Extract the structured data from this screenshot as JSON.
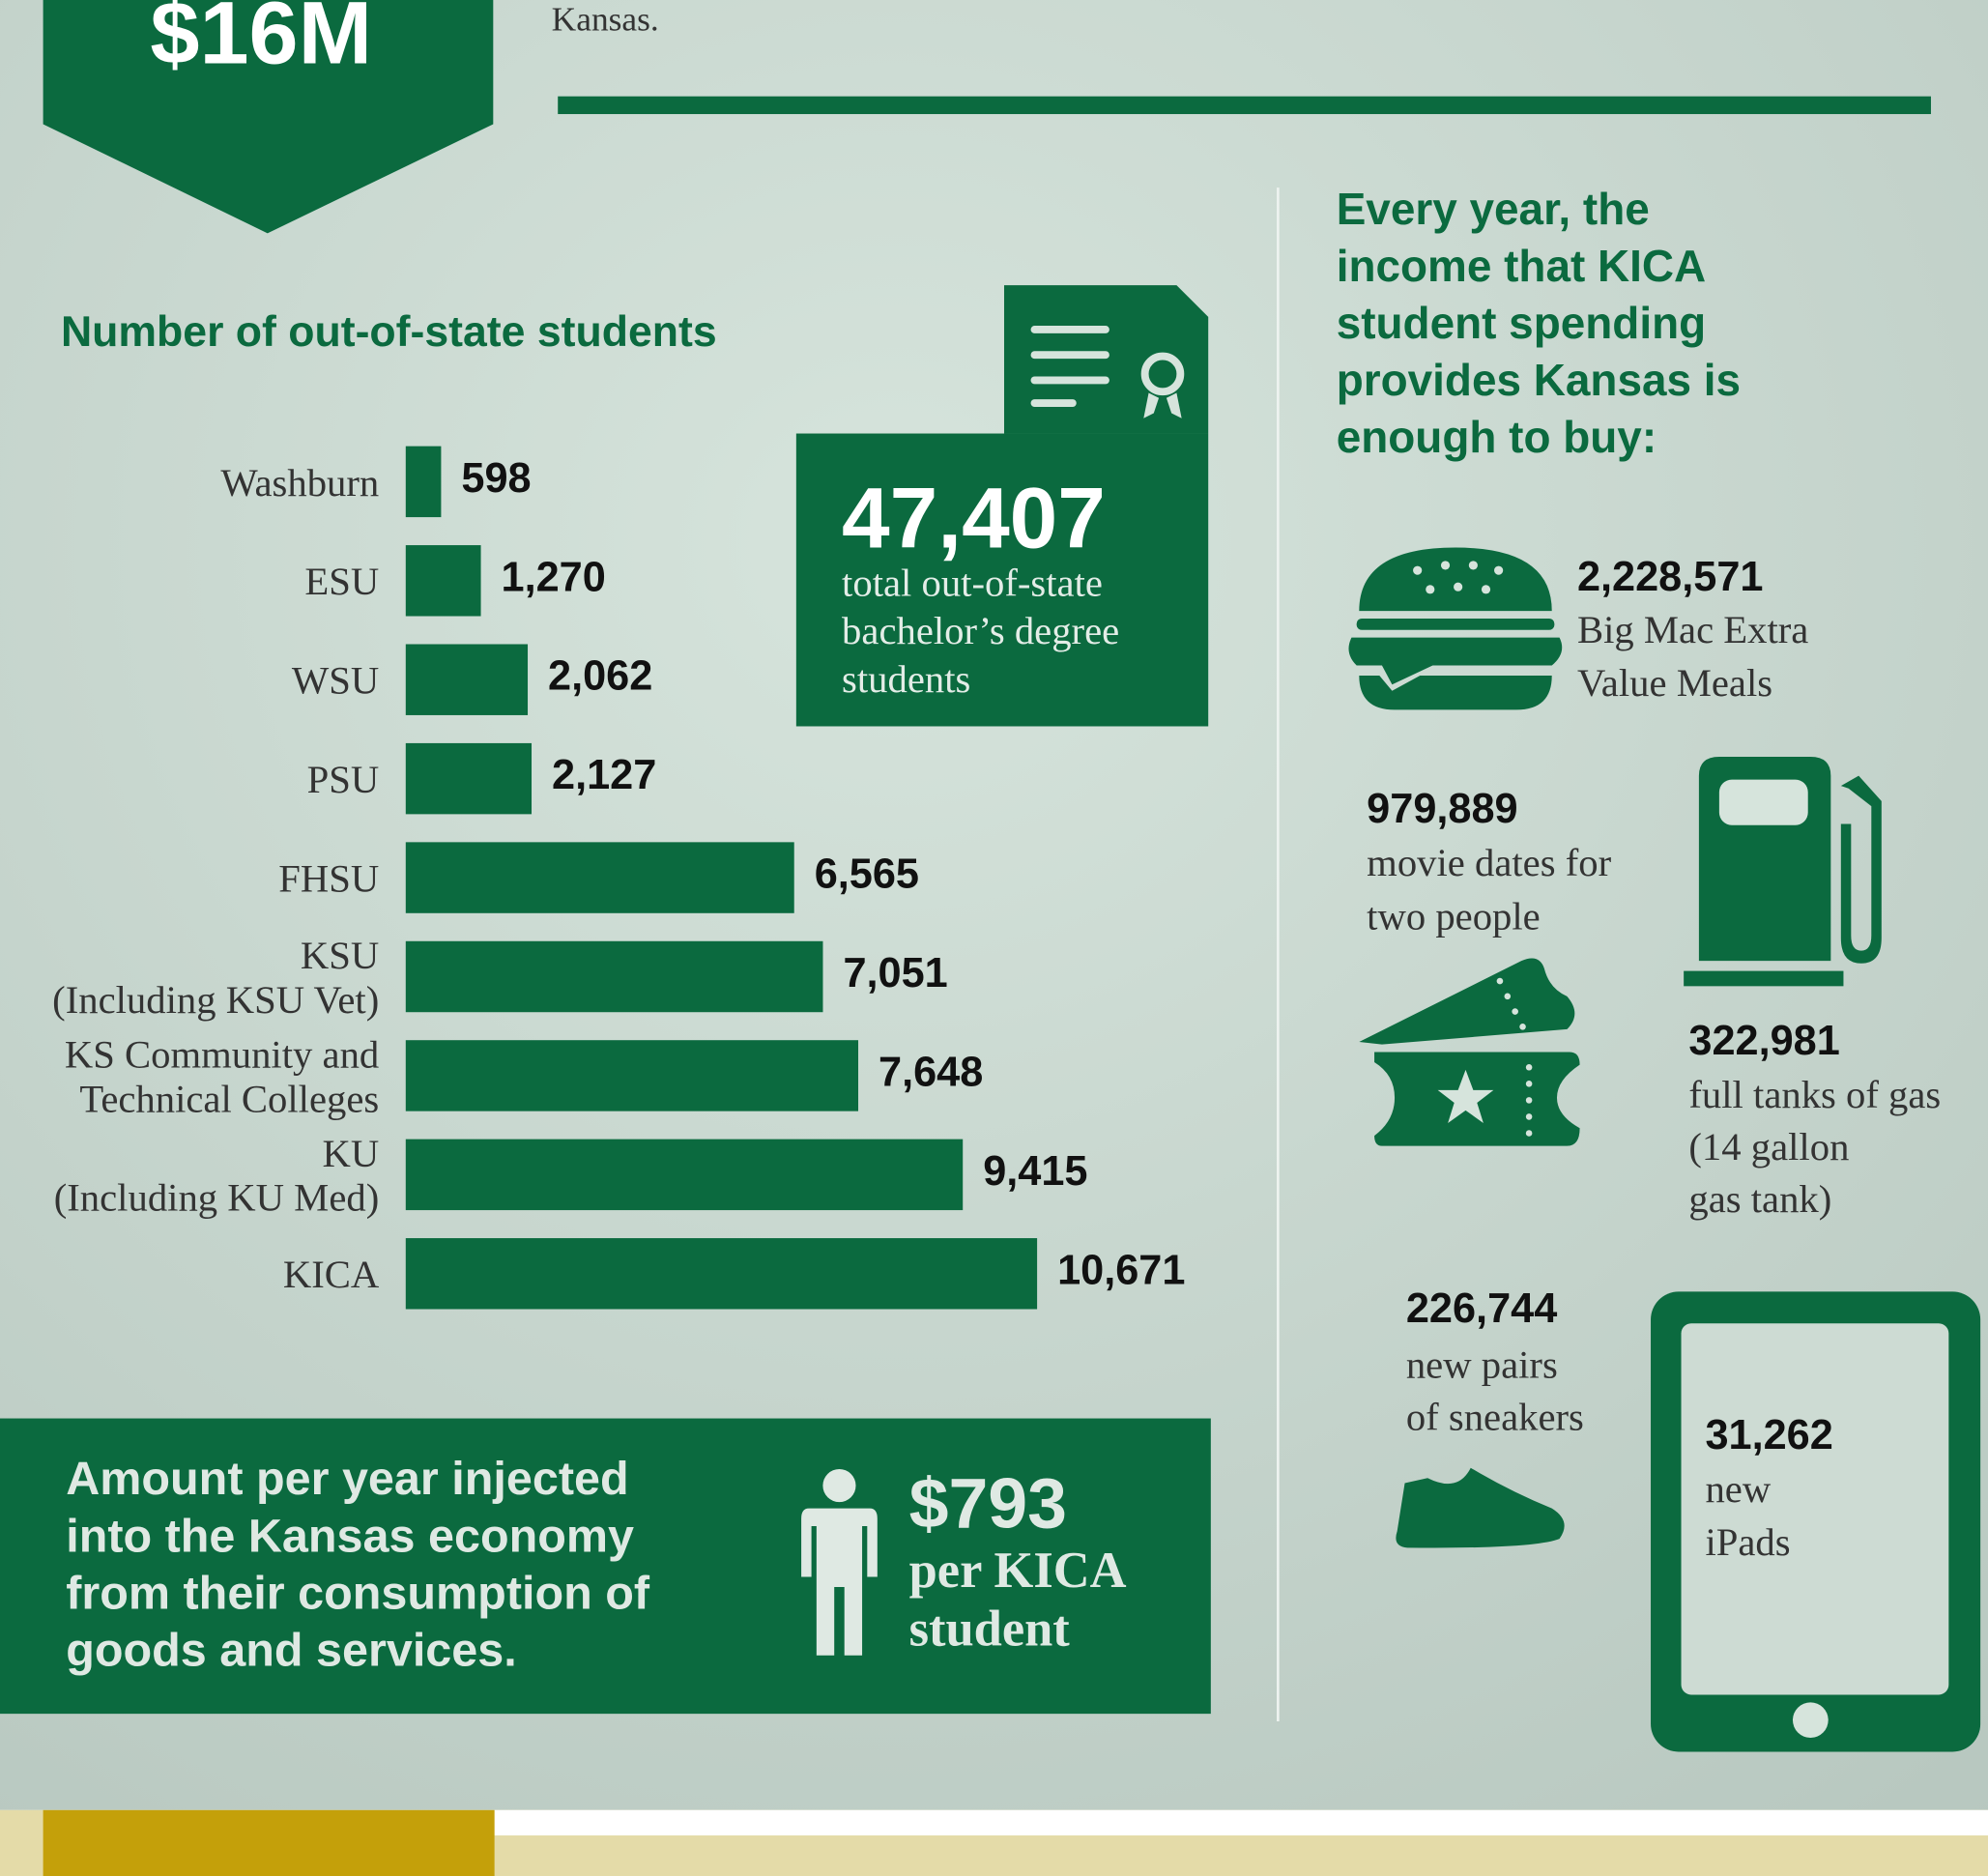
{
  "header": {
    "amount": "$16M",
    "text": "Kansas."
  },
  "chart_data": {
    "type": "bar",
    "orientation": "horizontal",
    "title": "Number of out-of-state students",
    "categories": [
      "Washburn",
      "ESU",
      "WSU",
      "PSU",
      "FHSU",
      "KSU\n(Including KSU Vet)",
      "KS Community and\nTechnical Colleges",
      "KU\n(Including KU Med)",
      "KICA"
    ],
    "values": [
      598,
      1270,
      2062,
      2127,
      6565,
      7051,
      7648,
      9415,
      10671
    ],
    "value_labels": [
      "598",
      "1,270",
      "2,062",
      "2,127",
      "6,565",
      "7,051",
      "7,648",
      "9,415",
      "10,671"
    ],
    "color": "#0b6a3f"
  },
  "total": {
    "value": "47,407",
    "label": "total out-of-state\nbachelor’s degree\nstudents"
  },
  "spending": {
    "title": "Every year, the\nincome that KICA\nstudent spending\nprovides Kansas is\nenough to buy:",
    "items": [
      {
        "value": "2,228,571",
        "label": "Big Mac Extra\nValue Meals"
      },
      {
        "value": "979,889",
        "label": "movie dates for\ntwo people"
      },
      {
        "value": "322,981",
        "label": "full tanks of gas\n(14 gallon\ngas tank)"
      },
      {
        "value": "226,744",
        "label": "new pairs\nof sneakers"
      },
      {
        "value": "31,262",
        "label": "new\niPads"
      }
    ]
  },
  "injection": {
    "text": "Amount per year injected\ninto the Kansas economy\nfrom their consumption of\ngoods and services.",
    "amount": "$793",
    "unit": "per KICA\nstudent"
  }
}
